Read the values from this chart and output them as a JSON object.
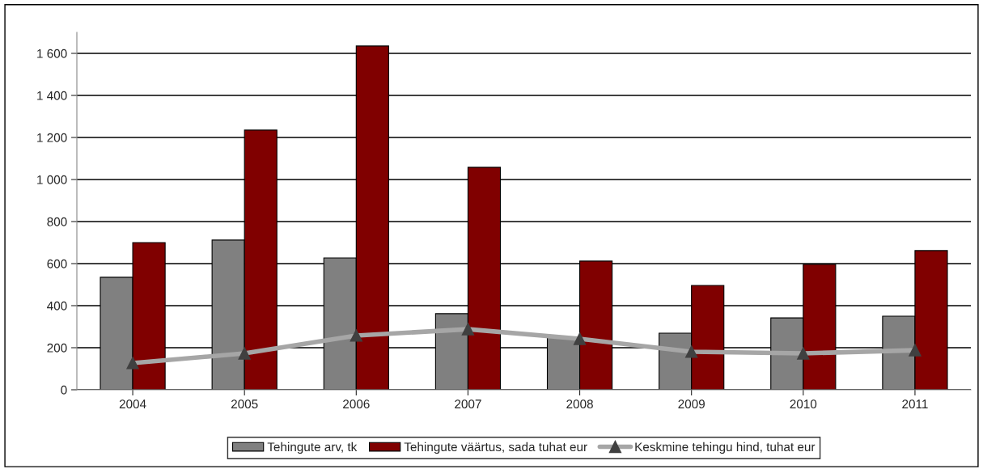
{
  "chart_data": {
    "type": "bar",
    "categories": [
      "2004",
      "2005",
      "2006",
      "2007",
      "2008",
      "2009",
      "2010",
      "2011"
    ],
    "series": [
      {
        "name": "Tehingute arv, tk",
        "color": "#808080",
        "values": [
          535,
          712,
          627,
          362,
          250,
          269,
          342,
          350
        ]
      },
      {
        "name": "Tehingute väärtus, sada tuhat eur",
        "color": "#800000",
        "values": [
          700,
          1235,
          1635,
          1058,
          612,
          496,
          596,
          662
        ]
      },
      {
        "name": "Keskmine tehingu hind, tuhat eur",
        "type": "line",
        "color": "#a6a6a6",
        "marker": "triangle",
        "values": [
          127,
          173,
          258,
          288,
          242,
          181,
          173,
          188
        ]
      }
    ],
    "ylim": [
      0,
      1700
    ],
    "yticks": [
      0,
      200,
      400,
      600,
      800,
      {
        "value": 1000,
        "label": "1 000"
      },
      {
        "value": 1200,
        "label": "1 200"
      },
      {
        "value": 1400,
        "label": "1 400"
      },
      {
        "value": 1600,
        "label": "1 600"
      }
    ],
    "grid": "y",
    "legend": "bottom"
  }
}
